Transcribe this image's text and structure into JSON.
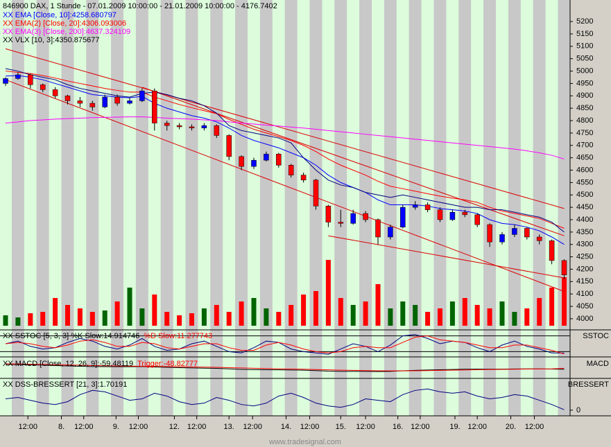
{
  "chart_data": [
    {
      "type": "candlestick",
      "title": "846900  DAX, 1 Stunde - 07.01.2009 10:00:00 - 21.01.2009 10:00:00 - 4176.7402",
      "up_color": "#0000ff",
      "down_color": "#ff0000",
      "volume_up_color": "#006400",
      "volume_down_color": "#ff0000",
      "open": [
        4950,
        4970,
        4985,
        4945,
        4925,
        4900,
        4880,
        4870,
        4855,
        4895,
        4870,
        4880,
        4920,
        4790,
        4780,
        4775,
        4770,
        4780,
        4740,
        4655,
        4615,
        4640,
        4665,
        4620,
        4580,
        4560,
        4455,
        4390,
        4385,
        4425,
        4400,
        4330,
        4370,
        4450,
        4460,
        4440,
        4400,
        4430,
        4420,
        4380,
        4310,
        4340,
        4365,
        4330,
        4315,
        4235
      ],
      "high": [
        4975,
        4995,
        4990,
        4950,
        4935,
        4905,
        4895,
        4880,
        4905,
        4905,
        4890,
        4930,
        4930,
        4800,
        4790,
        4785,
        4790,
        4785,
        4745,
        4660,
        4650,
        4675,
        4670,
        4625,
        4590,
        4565,
        4460,
        4440,
        4440,
        4435,
        4405,
        4380,
        4460,
        4475,
        4470,
        4450,
        4440,
        4440,
        4425,
        4385,
        4350,
        4380,
        4370,
        4340,
        4320,
        4240
      ],
      "low": [
        4940,
        4965,
        4930,
        4915,
        4890,
        4865,
        4855,
        4840,
        4850,
        4860,
        4865,
        4875,
        4760,
        4760,
        4765,
        4760,
        4760,
        4730,
        4640,
        4600,
        4605,
        4635,
        4610,
        4570,
        4550,
        4440,
        4370,
        4370,
        4380,
        4390,
        4300,
        4320,
        4365,
        4440,
        4430,
        4390,
        4395,
        4410,
        4370,
        4290,
        4300,
        4330,
        4320,
        4300,
        4220,
        4160
      ],
      "close": [
        4970,
        4985,
        4945,
        4925,
        4900,
        4880,
        4870,
        4855,
        4895,
        4870,
        4880,
        4920,
        4790,
        4780,
        4775,
        4770,
        4780,
        4740,
        4655,
        4615,
        4640,
        4665,
        4620,
        4580,
        4560,
        4455,
        4390,
        4385,
        4425,
        4400,
        4330,
        4370,
        4450,
        4460,
        4440,
        4400,
        4430,
        4420,
        4380,
        4310,
        4340,
        4365,
        4330,
        4315,
        4235,
        4177
      ],
      "volume": [
        15,
        12,
        18,
        20,
        40,
        30,
        25,
        20,
        22,
        35,
        55,
        25,
        45,
        20,
        15,
        18,
        25,
        30,
        20,
        35,
        40,
        25,
        20,
        30,
        45,
        50,
        95,
        40,
        30,
        35,
        60,
        25,
        35,
        30,
        20,
        25,
        35,
        40,
        30,
        25,
        35,
        20,
        25,
        40,
        55,
        70
      ],
      "series": [
        {
          "name": "XX EMA [Close, 10]:4258.680797",
          "color": "#0000ff",
          "values": [
            4980,
            4982,
            4975,
            4965,
            4950,
            4935,
            4920,
            4905,
            4900,
            4895,
            4892,
            4898,
            4870,
            4850,
            4835,
            4820,
            4810,
            4795,
            4770,
            4740,
            4720,
            4705,
            4690,
            4670,
            4650,
            4620,
            4580,
            4550,
            4530,
            4510,
            4480,
            4460,
            4460,
            4460,
            4455,
            4445,
            4440,
            4435,
            4425,
            4400,
            4385,
            4380,
            4370,
            4355,
            4330,
            4300
          ]
        },
        {
          "name": "XX EMA(2) [Close, 20]:4306.093006",
          "color": "#ff0000",
          "values": [
            5000,
            4995,
            4990,
            4982,
            4972,
            4960,
            4950,
            4940,
            4930,
            4922,
            4915,
            4915,
            4895,
            4880,
            4865,
            4852,
            4840,
            4828,
            4805,
            4785,
            4765,
            4750,
            4735,
            4720,
            4700,
            4675,
            4645,
            4620,
            4600,
            4580,
            4555,
            4535,
            4525,
            4515,
            4505,
            4495,
            4487,
            4480,
            4470,
            4450,
            4435,
            4425,
            4415,
            4405,
            4385,
            4365
          ]
        },
        {
          "name": "XX EMA(3) [Close, 200]:4637.324109",
          "color": "#ff00ff",
          "values": [
            4790,
            4795,
            4800,
            4803,
            4806,
            4808,
            4810,
            4812,
            4813,
            4814,
            4815,
            4815,
            4813,
            4810,
            4808,
            4806,
            4803,
            4800,
            4795,
            4790,
            4786,
            4782,
            4778,
            4774,
            4770,
            4765,
            4760,
            4755,
            4750,
            4745,
            4740,
            4735,
            4730,
            4725,
            4720,
            4715,
            4710,
            4705,
            4700,
            4695,
            4690,
            4685,
            4678,
            4670,
            4660,
            4645
          ]
        },
        {
          "name": "XX VLX [10, 3]:4350.875677",
          "color": "#000080",
          "values": [
            5010,
            5000,
            4985,
            4975,
            4965,
            4945,
            4930,
            4920,
            4910,
            4900,
            4895,
            4910,
            4915,
            4905,
            4890,
            4880,
            4860,
            4830,
            4780,
            4760,
            4750,
            4740,
            4730,
            4710,
            4650,
            4600,
            4560,
            4540,
            4530,
            4510,
            4500,
            4490,
            4500,
            4490,
            4480,
            4470,
            4460,
            4450,
            4450,
            4440,
            4440,
            4430,
            4420,
            4410,
            4390,
            4350
          ]
        }
      ],
      "trendline_color": "#dd0000",
      "trendlines": [
        {
          "x": [
            0,
            45
          ],
          "y": [
            5090,
            4445
          ]
        },
        {
          "x": [
            0,
            45
          ],
          "y": [
            4965,
            4110
          ]
        },
        {
          "x": [
            11,
            45
          ],
          "y": [
            4935,
            4335
          ]
        },
        {
          "x": [
            26,
            45
          ],
          "y": [
            4335,
            4165
          ]
        }
      ],
      "ylim": [
        3955,
        5287
      ],
      "yticks": [
        4000,
        4050,
        4100,
        4150,
        4200,
        4250,
        4300,
        4350,
        4400,
        4450,
        4500,
        4550,
        4600,
        4650,
        4700,
        4750,
        4800,
        4850,
        4900,
        4950,
        5000,
        5050,
        5100,
        5150,
        5200
      ]
    },
    {
      "type": "line",
      "title": "SSTOC",
      "ylim": [
        0,
        100
      ],
      "levels": [
        20,
        80
      ],
      "series": [
        {
          "name": "XX SSTOC [5, 3, 3] %K Slow:14.914746",
          "color": "#000080",
          "values": [
            50,
            60,
            40,
            30,
            35,
            55,
            70,
            60,
            40,
            30,
            45,
            70,
            40,
            25,
            30,
            50,
            60,
            40,
            20,
            15,
            35,
            60,
            55,
            30,
            20,
            15,
            10,
            30,
            50,
            40,
            20,
            45,
            80,
            85,
            70,
            50,
            60,
            55,
            35,
            20,
            45,
            60,
            40,
            30,
            15,
            14.9
          ]
        },
        {
          "name": "%D Slow:11.277743",
          "color": "#ff0000",
          "values": [
            50,
            55,
            50,
            40,
            35,
            45,
            60,
            65,
            55,
            40,
            40,
            55,
            50,
            35,
            30,
            40,
            50,
            50,
            35,
            25,
            25,
            45,
            55,
            45,
            30,
            20,
            15,
            20,
            35,
            40,
            35,
            35,
            55,
            75,
            80,
            65,
            60,
            55,
            45,
            35,
            35,
            45,
            45,
            35,
            25,
            11.3
          ]
        }
      ]
    },
    {
      "type": "line",
      "title": "MACD",
      "ylim": [
        -150,
        50
      ],
      "series": [
        {
          "name": "XX MACD [Close, 12, 26, 9]:-59.48119",
          "color": "#000000",
          "values": [
            -10,
            -12,
            -15,
            -18,
            -22,
            -26,
            -29,
            -32,
            -33,
            -34,
            -34,
            -32,
            -36,
            -40,
            -43,
            -46,
            -48,
            -50,
            -55,
            -60,
            -63,
            -64,
            -65,
            -66,
            -68,
            -72,
            -78,
            -80,
            -80,
            -80,
            -82,
            -80,
            -74,
            -70,
            -66,
            -64,
            -61,
            -59,
            -58,
            -59,
            -58,
            -56,
            -55,
            -55,
            -57,
            -59.5
          ]
        },
        {
          "name": "Trigger:-48.82777",
          "color": "#ff0000",
          "values": [
            -5,
            -7,
            -9,
            -11,
            -14,
            -16,
            -19,
            -22,
            -24,
            -26,
            -28,
            -29,
            -30,
            -32,
            -34,
            -36,
            -38,
            -40,
            -43,
            -46,
            -49,
            -52,
            -55,
            -57,
            -59,
            -62,
            -65,
            -68,
            -70,
            -72,
            -74,
            -75,
            -75,
            -74,
            -72,
            -70,
            -68,
            -66,
            -64,
            -62,
            -60,
            -59,
            -57,
            -56,
            -55,
            -48.8
          ]
        }
      ]
    },
    {
      "type": "line",
      "title": "BRESSERT",
      "ylim": [
        -20,
        110
      ],
      "yticks": [
        0
      ],
      "series": [
        {
          "name": "XX DSS-BRESSERT [21, 3]:1.70191",
          "color": "#000080",
          "values": [
            40,
            45,
            35,
            25,
            20,
            30,
            55,
            70,
            65,
            50,
            35,
            40,
            60,
            50,
            30,
            20,
            25,
            45,
            35,
            20,
            15,
            25,
            50,
            60,
            45,
            25,
            15,
            10,
            20,
            40,
            35,
            30,
            55,
            70,
            75,
            65,
            60,
            65,
            50,
            40,
            45,
            55,
            50,
            35,
            20,
            1.7
          ]
        }
      ],
      "xticks": [
        {
          "value": 1.8,
          "label": "12:00"
        },
        {
          "value": 4.5,
          "label": "8."
        },
        {
          "value": 6.3,
          "label": "12:00"
        },
        {
          "value": 8.9,
          "label": "9."
        },
        {
          "value": 10.7,
          "label": "12:00"
        },
        {
          "value": 13.6,
          "label": "12."
        },
        {
          "value": 15.4,
          "label": "12:00"
        },
        {
          "value": 18.0,
          "label": "13."
        },
        {
          "value": 19.9,
          "label": "12:00"
        },
        {
          "value": 22.6,
          "label": "14."
        },
        {
          "value": 24.5,
          "label": "12:00"
        },
        {
          "value": 27.0,
          "label": "15."
        },
        {
          "value": 29.0,
          "label": "12:00"
        },
        {
          "value": 31.6,
          "label": "16."
        },
        {
          "value": 33.4,
          "label": "12:00"
        },
        {
          "value": 36.2,
          "label": "19."
        },
        {
          "value": 38.0,
          "label": "12:00"
        },
        {
          "value": 40.7,
          "label": "20."
        },
        {
          "value": 42.6,
          "label": "12:00"
        }
      ]
    }
  ],
  "watermark": "www.tradesignal.com"
}
